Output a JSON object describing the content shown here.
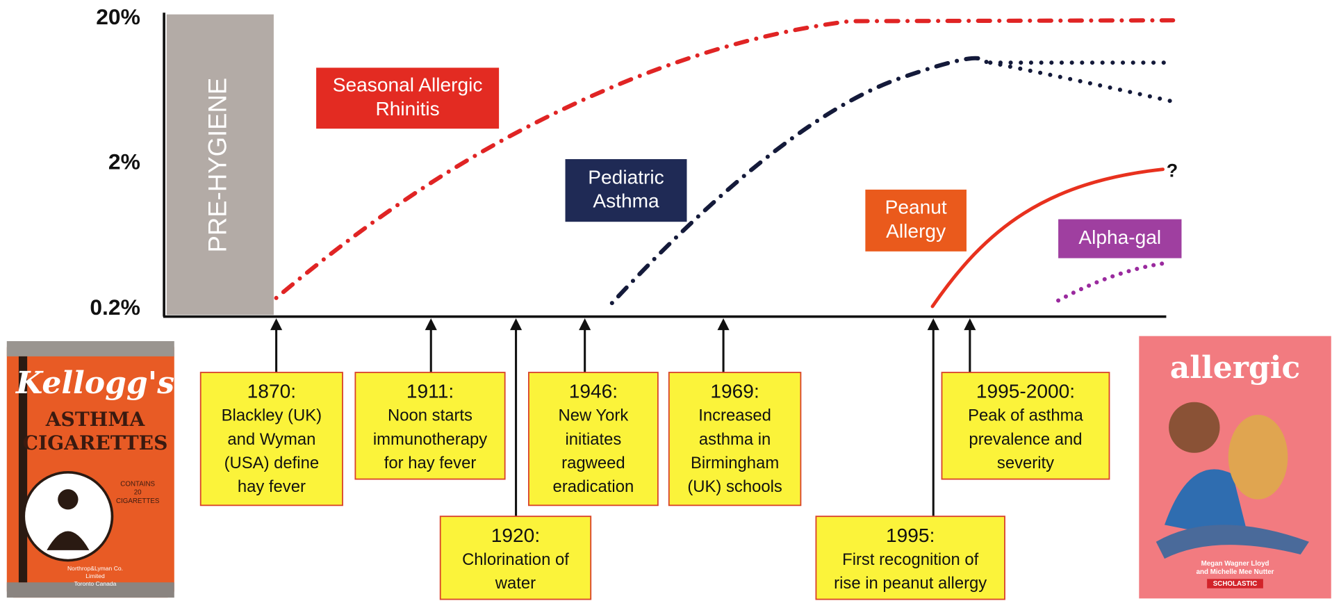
{
  "y_axis_labels": [
    "20%",
    "2%",
    "0.2%"
  ],
  "pre_hygiene": "PRE-HYGIENE",
  "condition_labels": [
    {
      "lines": [
        "Seasonal Allergic",
        "Rhinitis"
      ]
    },
    {
      "lines": [
        "Pediatric",
        "Asthma"
      ]
    },
    {
      "lines": [
        "Peanut",
        "Allergy"
      ]
    },
    {
      "lines": [
        "Alpha-gal"
      ]
    }
  ],
  "uncertainty_mark": "?",
  "events": [
    {
      "year": "1870:",
      "lines": [
        "Blackley (UK)",
        "and Wyman",
        "(USA) define",
        "hay fever"
      ]
    },
    {
      "year": "1911:",
      "lines": [
        "Noon starts",
        "immunotherapy",
        "for hay fever"
      ]
    },
    {
      "year": "1920:",
      "lines": [
        "Chlorination of",
        "water"
      ]
    },
    {
      "year": "1946:",
      "lines": [
        "New York",
        "initiates",
        "ragweed",
        "eradication"
      ]
    },
    {
      "year": "1969:",
      "lines": [
        "Increased",
        "asthma in",
        "Birmingham",
        "(UK) schools"
      ]
    },
    {
      "year": "1995:",
      "lines": [
        "First recognition of",
        "rise in peanut allergy"
      ]
    },
    {
      "year": "1995-2000:",
      "lines": [
        "Peak of asthma",
        "prevalence and",
        "severity"
      ]
    }
  ],
  "tin": {
    "brand": "Kellogg's",
    "lines": [
      "ASTHMA",
      "CIGARETTES"
    ],
    "contents": [
      "CONTAINS",
      "20",
      "CIGARETTES"
    ],
    "maker": [
      "Northrop&Lyman Co.",
      "Limited",
      "Toronto    Canada"
    ]
  },
  "book": {
    "title": "allergic",
    "authors": [
      "Megan Wagner Lloyd",
      "and Michelle Mee Nutter"
    ],
    "publisher": "SCHOLASTIC"
  }
}
